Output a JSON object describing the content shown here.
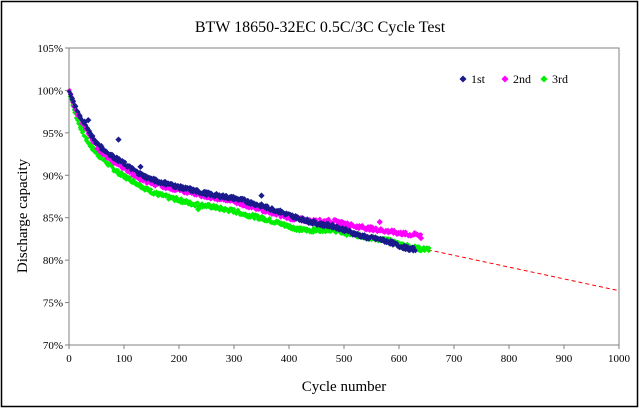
{
  "chart_data": {
    "type": "scatter",
    "title": "BTW 18650-32EC  0.5C/3C  Cycle Test",
    "xlabel": "Cycle number",
    "ylabel": "Discharge capacity",
    "xlim": [
      0,
      1000
    ],
    "ylim": [
      70,
      105
    ],
    "x_ticks": [
      "0",
      "100",
      "200",
      "300",
      "400",
      "500",
      "600",
      "700",
      "800",
      "900",
      "1000"
    ],
    "y_ticks": [
      "70%",
      "75%",
      "80%",
      "85%",
      "90%",
      "95%",
      "100%",
      "105%"
    ],
    "grid": false,
    "legend_position": "top-right",
    "series": [
      {
        "name": "1st",
        "color": "#1a1a8c",
        "marker": "diamond",
        "points": [
          [
            0,
            100.0
          ],
          [
            10,
            98.3
          ],
          [
            20,
            97.0
          ],
          [
            30,
            96.0
          ],
          [
            40,
            94.8
          ],
          [
            50,
            93.8
          ],
          [
            60,
            93.2
          ],
          [
            70,
            92.7
          ],
          [
            80,
            92.2
          ],
          [
            90,
            91.8
          ],
          [
            100,
            91.4
          ],
          [
            120,
            90.5
          ],
          [
            140,
            89.8
          ],
          [
            160,
            89.3
          ],
          [
            180,
            89.0
          ],
          [
            200,
            88.6
          ],
          [
            220,
            88.3
          ],
          [
            240,
            88.0
          ],
          [
            260,
            87.7
          ],
          [
            280,
            87.5
          ],
          [
            300,
            87.3
          ],
          [
            320,
            87.0
          ],
          [
            340,
            86.6
          ],
          [
            360,
            86.2
          ],
          [
            380,
            85.8
          ],
          [
            400,
            85.3
          ],
          [
            420,
            84.9
          ],
          [
            440,
            84.5
          ],
          [
            460,
            84.2
          ],
          [
            480,
            84.0
          ],
          [
            500,
            83.6
          ],
          [
            520,
            83.1
          ],
          [
            540,
            82.7
          ],
          [
            560,
            82.5
          ],
          [
            580,
            82.2
          ],
          [
            600,
            81.7
          ],
          [
            620,
            81.3
          ],
          [
            630,
            81.3
          ]
        ],
        "outliers": [
          [
            35,
            96.5
          ],
          [
            90,
            94.2
          ],
          [
            130,
            91.0
          ],
          [
            350,
            87.6
          ],
          [
            220,
            88.5
          ]
        ]
      },
      {
        "name": "2nd",
        "color": "#ff00ff",
        "marker": "diamond",
        "points": [
          [
            0,
            100.0
          ],
          [
            10,
            98.0
          ],
          [
            20,
            96.6
          ],
          [
            30,
            95.6
          ],
          [
            40,
            94.4
          ],
          [
            50,
            93.4
          ],
          [
            60,
            92.7
          ],
          [
            70,
            92.2
          ],
          [
            80,
            91.7
          ],
          [
            90,
            91.3
          ],
          [
            100,
            90.9
          ],
          [
            120,
            90.0
          ],
          [
            140,
            89.3
          ],
          [
            160,
            88.9
          ],
          [
            180,
            88.6
          ],
          [
            200,
            88.3
          ],
          [
            220,
            88.0
          ],
          [
            240,
            87.7
          ],
          [
            260,
            87.4
          ],
          [
            280,
            87.2
          ],
          [
            300,
            87.0
          ],
          [
            320,
            86.5
          ],
          [
            340,
            86.1
          ],
          [
            360,
            85.8
          ],
          [
            380,
            85.4
          ],
          [
            400,
            85.0
          ],
          [
            420,
            84.8
          ],
          [
            440,
            84.6
          ],
          [
            460,
            84.6
          ],
          [
            480,
            84.6
          ],
          [
            500,
            84.3
          ],
          [
            520,
            84.0
          ],
          [
            540,
            83.8
          ],
          [
            560,
            83.6
          ],
          [
            580,
            83.4
          ],
          [
            600,
            83.2
          ],
          [
            620,
            83.0
          ],
          [
            640,
            83.0
          ]
        ],
        "outliers": [
          [
            565,
            84.5
          ],
          [
            640,
            82.6
          ]
        ]
      },
      {
        "name": "3rd",
        "color": "#00ee00",
        "marker": "diamond",
        "points": [
          [
            0,
            100.0
          ],
          [
            10,
            97.5
          ],
          [
            20,
            95.8
          ],
          [
            30,
            94.4
          ],
          [
            40,
            93.4
          ],
          [
            50,
            92.6
          ],
          [
            60,
            92.0
          ],
          [
            70,
            91.4
          ],
          [
            80,
            90.8
          ],
          [
            90,
            90.3
          ],
          [
            100,
            89.9
          ],
          [
            120,
            89.2
          ],
          [
            140,
            88.4
          ],
          [
            160,
            87.8
          ],
          [
            180,
            87.4
          ],
          [
            200,
            87.1
          ],
          [
            220,
            86.7
          ],
          [
            240,
            86.5
          ],
          [
            260,
            86.3
          ],
          [
            280,
            86.0
          ],
          [
            300,
            85.8
          ],
          [
            320,
            85.4
          ],
          [
            340,
            85.1
          ],
          [
            360,
            84.8
          ],
          [
            380,
            84.4
          ],
          [
            400,
            84.0
          ],
          [
            420,
            83.6
          ],
          [
            440,
            83.5
          ],
          [
            460,
            83.6
          ],
          [
            480,
            83.6
          ],
          [
            500,
            83.2
          ],
          [
            520,
            83.0
          ],
          [
            540,
            82.7
          ],
          [
            560,
            82.5
          ],
          [
            580,
            82.3
          ],
          [
            600,
            81.9
          ],
          [
            620,
            81.6
          ],
          [
            640,
            81.3
          ],
          [
            655,
            81.3
          ]
        ],
        "outliers": [
          [
            235,
            86.0
          ]
        ]
      }
    ],
    "trendline": {
      "color": "#ff0000",
      "style": "dashed",
      "points": [
        [
          640,
          81.4
        ],
        [
          1000,
          76.4
        ]
      ]
    }
  }
}
